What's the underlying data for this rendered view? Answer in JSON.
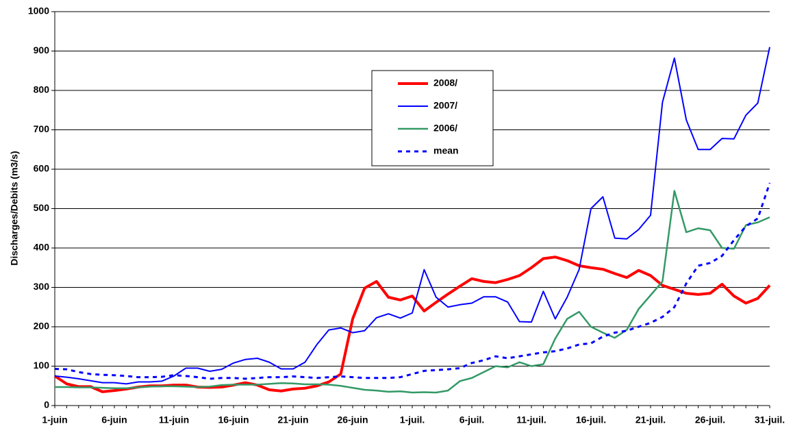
{
  "chart_data": {
    "type": "line",
    "y_label": "Discharges/Debits (m3/s)",
    "categories": [
      "1-juin",
      null,
      null,
      null,
      null,
      "6-juin",
      null,
      null,
      null,
      null,
      "11-juin",
      null,
      null,
      null,
      null,
      "16-juin",
      null,
      null,
      null,
      null,
      "21-juin",
      null,
      null,
      null,
      null,
      "26-juin",
      null,
      null,
      null,
      null,
      "1-juil.",
      null,
      null,
      null,
      null,
      "6-juil.",
      null,
      null,
      null,
      null,
      "11-juil.",
      null,
      null,
      null,
      null,
      "16-juil.",
      null,
      null,
      null,
      null,
      "21-juil.",
      null,
      null,
      null,
      null,
      "26-juil.",
      null,
      null,
      null,
      null,
      "31-juil."
    ],
    "series": [
      {
        "name": "2008/",
        "color": "#ff0000",
        "values": [
          75,
          55,
          48,
          48,
          35,
          38,
          42,
          47,
          50,
          50,
          52,
          52,
          47,
          46,
          47,
          52,
          58,
          52,
          40,
          37,
          42,
          44,
          50,
          60,
          80,
          220,
          298,
          315,
          275,
          268,
          278,
          240,
          262,
          283,
          303,
          322,
          315,
          312,
          320,
          330,
          350,
          373,
          377,
          368,
          355,
          350,
          346,
          335,
          325,
          343,
          330,
          305,
          295,
          285,
          282,
          285,
          308,
          278,
          260,
          272,
          305
        ]
      },
      {
        "name": "2007/",
        "color": "#0000ff",
        "values": [
          75,
          72,
          68,
          63,
          58,
          58,
          55,
          60,
          60,
          62,
          75,
          95,
          95,
          87,
          92,
          108,
          117,
          120,
          110,
          93,
          93,
          110,
          155,
          192,
          197,
          185,
          190,
          223,
          233,
          222,
          235,
          345,
          275,
          250,
          256,
          260,
          276,
          276,
          263,
          213,
          212,
          290,
          220,
          275,
          345,
          500,
          530,
          425,
          423,
          447,
          483,
          770,
          882,
          725,
          650,
          650,
          678,
          677,
          737,
          768,
          910
        ]
      },
      {
        "name": "2006/",
        "color": "#339966",
        "values": [
          47,
          47,
          46,
          46,
          45,
          44,
          44,
          46,
          48,
          49,
          49,
          48,
          47,
          48,
          52,
          53,
          53,
          53,
          55,
          57,
          56,
          54,
          54,
          53,
          50,
          45,
          40,
          38,
          35,
          36,
          33,
          34,
          33,
          38,
          62,
          70,
          85,
          100,
          97,
          110,
          100,
          105,
          170,
          220,
          238,
          200,
          185,
          172,
          192,
          245,
          280,
          315,
          545,
          440,
          450,
          445,
          400,
          398,
          458,
          465,
          478
        ]
      },
      {
        "name": "mean",
        "color": "#0000ff",
        "dashed": true,
        "values": [
          93,
          92,
          85,
          80,
          78,
          77,
          75,
          72,
          72,
          73,
          77,
          75,
          72,
          68,
          70,
          70,
          68,
          70,
          72,
          72,
          74,
          72,
          70,
          72,
          74,
          72,
          70,
          70,
          70,
          72,
          80,
          88,
          90,
          92,
          95,
          108,
          115,
          125,
          120,
          125,
          130,
          135,
          138,
          145,
          155,
          158,
          175,
          185,
          190,
          200,
          210,
          225,
          250,
          310,
          355,
          362,
          380,
          420,
          455,
          475,
          565
        ]
      }
    ],
    "ylim": [
      0,
      1000
    ],
    "yticks": [
      0,
      100,
      200,
      300,
      400,
      500,
      600,
      700,
      800,
      900,
      1000
    ],
    "grid": true
  }
}
